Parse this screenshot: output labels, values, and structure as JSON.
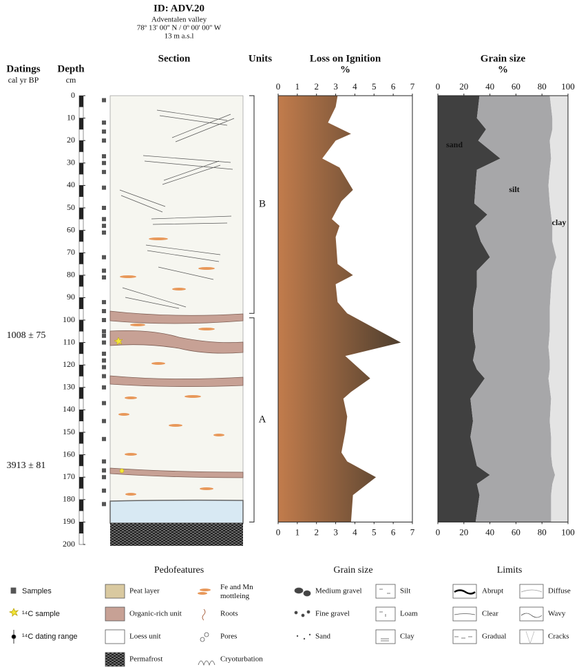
{
  "header": {
    "title": "ID: ADV.20",
    "lines": [
      "Adventalen valley",
      "78º 13' 00'' N / 0º 00' 00'' W",
      "13 m a.s.l"
    ]
  },
  "section": {
    "datings_label": "Datings",
    "datings_unit": "cal yr BP",
    "depth_label": "Depth",
    "depth_unit": "cm",
    "title": "Section",
    "units_label": "Units",
    "depth_lim": [
      0,
      200
    ],
    "depth_ticks": [
      0,
      10,
      20,
      30,
      40,
      50,
      60,
      70,
      80,
      90,
      100,
      110,
      120,
      130,
      140,
      150,
      160,
      170,
      180,
      190,
      200
    ],
    "units": [
      {
        "label": "B",
        "top": 0,
        "bottom": 97
      },
      {
        "label": "A",
        "top": 99,
        "bottom": 190
      }
    ],
    "datings": [
      {
        "label": "1008 ± 75",
        "depth": 107
      },
      {
        "label": "3913 ± 81",
        "depth": 165
      }
    ]
  },
  "chart_data": [
    {
      "type": "area",
      "title": "Loss on Ignition",
      "xlabel": "%",
      "xlim": [
        0,
        7
      ],
      "xticks": [
        0,
        1,
        2,
        3,
        4,
        5,
        6,
        7
      ],
      "ylim": [
        0,
        190
      ],
      "depth": [
        0,
        5,
        12,
        17,
        20,
        28,
        32,
        42,
        47,
        55,
        58,
        63,
        75,
        80,
        84,
        92,
        97,
        110,
        116,
        126,
        132,
        135,
        143,
        150,
        159,
        163,
        170,
        178,
        190
      ],
      "values": [
        3.1,
        3.0,
        2.6,
        3.8,
        3.0,
        2.3,
        3.2,
        3.9,
        3.3,
        2.8,
        3.2,
        3.0,
        3.1,
        3.9,
        3.0,
        3.1,
        3.6,
        6.4,
        3.5,
        4.8,
        3.8,
        3.4,
        3.6,
        3.5,
        3.3,
        3.6,
        5.1,
        3.9,
        3.8
      ]
    },
    {
      "type": "stacked-area",
      "title": "Grain size",
      "xlabel": "%",
      "xlim": [
        0,
        100
      ],
      "xticks": [
        0,
        20,
        40,
        60,
        80,
        100
      ],
      "ylim": [
        0,
        190
      ],
      "depth": [
        0,
        10,
        15,
        20,
        28,
        33,
        40,
        48,
        53,
        58,
        65,
        72,
        78,
        85,
        95,
        105,
        112,
        118,
        122,
        126,
        135,
        145,
        152,
        160,
        165,
        169,
        173,
        178,
        190
      ],
      "series": [
        {
          "name": "sand",
          "color": "#404040",
          "values": [
            32,
            30,
            37,
            31,
            48,
            30,
            29,
            28,
            38,
            29,
            33,
            40,
            30,
            30,
            27,
            27,
            29,
            27,
            30,
            36,
            25,
            27,
            25,
            28,
            30,
            40,
            30,
            32,
            29
          ]
        },
        {
          "name": "silt",
          "color": "#a7a7a9",
          "values": [
            54,
            58,
            51,
            55,
            39,
            56,
            56,
            58,
            49,
            59,
            55,
            51,
            58,
            57,
            59,
            59,
            56,
            59,
            56,
            49,
            62,
            59,
            62,
            59,
            58,
            50,
            58,
            55,
            58
          ]
        },
        {
          "name": "clay",
          "color": "#e4e4e4",
          "values": [
            14,
            12,
            12,
            14,
            13,
            14,
            15,
            14,
            13,
            12,
            12,
            9,
            12,
            13,
            14,
            14,
            15,
            14,
            14,
            15,
            13,
            14,
            13,
            13,
            12,
            10,
            12,
            13,
            13
          ]
        }
      ]
    }
  ],
  "legend": {
    "left": [
      "Samples",
      "¹⁴C sample",
      "¹⁴C dating range"
    ],
    "pedofeatures": {
      "title": "Pedofeatures",
      "items": [
        "Peat layer",
        "Organic-rich unit",
        "Loess unit",
        "Permafrost",
        "Fe and Mn mottleing",
        "Roots",
        "Pores",
        "Cryoturbation"
      ]
    },
    "grain_size": {
      "title": "Grain size",
      "items": [
        "Medium gravel",
        "Fine gravel",
        "Sand",
        "Silt",
        "Loam",
        "Clay"
      ]
    },
    "limits": {
      "title": "Limits",
      "items": [
        "Abrupt",
        "Clear",
        "Gradual",
        "Diffuse",
        "Wavy",
        "Cracks"
      ]
    }
  }
}
